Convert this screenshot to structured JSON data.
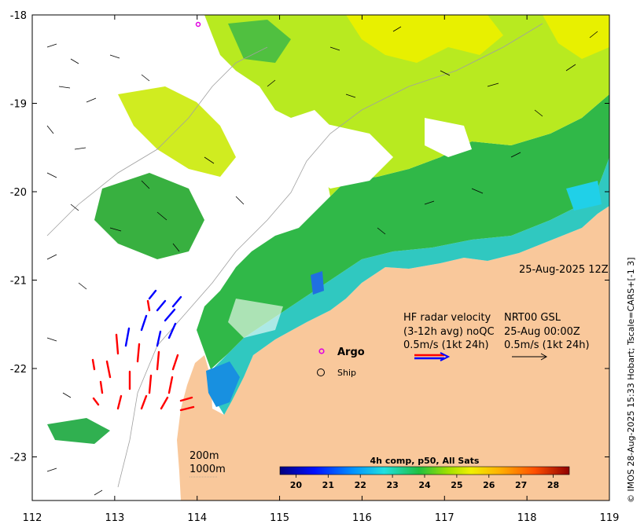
{
  "map": {
    "longitude_ticks": [
      "112",
      "113",
      "114",
      "115",
      "116",
      "117",
      "118",
      "119"
    ],
    "latitude_ticks": [
      "-18",
      "-19",
      "-20",
      "-21",
      "-22",
      "-23"
    ],
    "timestamp": "25-Aug-2025 12Z",
    "credit": "© IMOS 28-Aug-2025 15:33 Hobart; Tscale=CARS+[-1 3]"
  },
  "legend": {
    "hf_title": "HF radar velocity",
    "hf_avg": "(3-12h avg) noQC",
    "hf_scale": "0.5m/s (1kt 24h)",
    "nrt_title": "NRT00 GSL",
    "nrt_time": "25-Aug 00:00Z",
    "nrt_scale": "0.5m/s (1kt 24h)",
    "argo_label": "Argo",
    "ship_label": "Ship",
    "argo_color": "#e000e0",
    "hf_colors": [
      "#ff0000",
      "#0000ff"
    ]
  },
  "depth_labels": [
    "200m",
    "1000m"
  ],
  "colorbar": {
    "title": "4h comp, p50, All Sats",
    "ticks": [
      "20",
      "21",
      "22",
      "23",
      "24",
      "25",
      "26",
      "27",
      "28"
    ],
    "range": [
      19.5,
      28.5
    ]
  },
  "colors": {
    "land": "#f9c89b",
    "sea_warm": "#c8f000",
    "sea_mid": "#28c040",
    "sea_cool": "#20b8e0"
  }
}
